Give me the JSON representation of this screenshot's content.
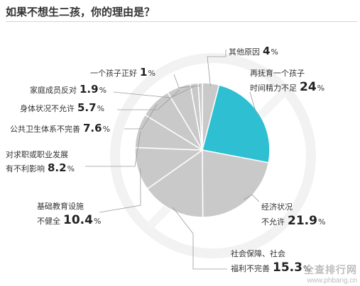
{
  "chart_data": {
    "type": "pie",
    "title": "如果不想生二孩，你的理由是？",
    "percent_sign": "%",
    "slices": [
      {
        "label_lines": [
          "其他原因"
        ],
        "value": 4,
        "value_text": "4"
      },
      {
        "label_lines": [
          "再抚育一个孩子",
          "时间精力不足"
        ],
        "value": 24,
        "value_text": "24",
        "highlight": true
      },
      {
        "label_lines": [
          "经济状况",
          "不允许"
        ],
        "value": 21.9,
        "value_text": "21.9"
      },
      {
        "label_lines": [
          "社会保障、社会",
          "福利不完善"
        ],
        "value": 15.3,
        "value_text": "15.3"
      },
      {
        "label_lines": [
          "基础教育设施",
          "不健全"
        ],
        "value": 10.4,
        "value_text": "10.4"
      },
      {
        "label_lines": [
          "对求职或职业发展",
          "有不利影响"
        ],
        "value": 8.2,
        "value_text": "8.2"
      },
      {
        "label_lines": [
          "公共卫生体系不完善"
        ],
        "value": 7.6,
        "value_text": "7.6"
      },
      {
        "label_lines": [
          "身体状况不允许"
        ],
        "value": 5.7,
        "value_text": "5.7"
      },
      {
        "label_lines": [
          "家庭成员反对"
        ],
        "value": 1.9,
        "value_text": "1.9"
      },
      {
        "label_lines": [
          "一个孩子正好"
        ],
        "value": 1,
        "value_text": "1"
      }
    ],
    "colors": {
      "highlight": "#2ebfd2",
      "others": "#c9c9c9",
      "separator": "#ffffff",
      "leader": "#9a9a9a"
    }
  },
  "watermark": {
    "name": "全查排行网",
    "url": "www.phbang.cn"
  }
}
